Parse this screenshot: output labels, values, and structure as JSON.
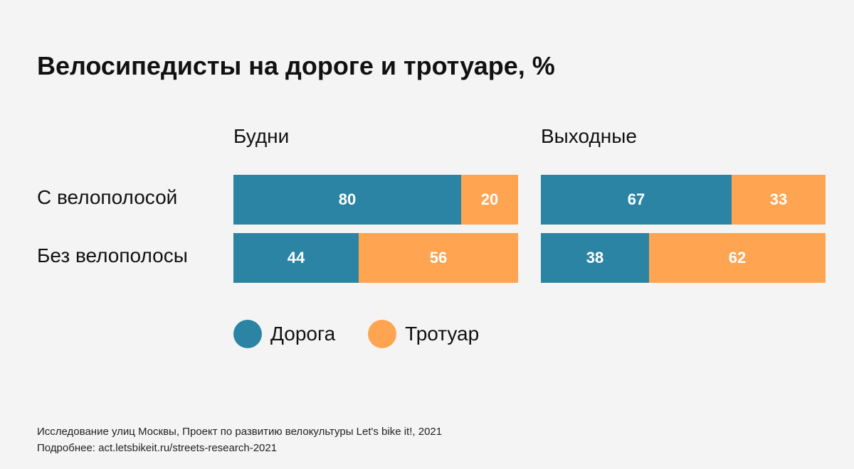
{
  "chart_data": {
    "type": "bar",
    "stacked": true,
    "orientation": "horizontal",
    "title": "Велосипедисты на дороге и тротуаре, %",
    "panels": [
      {
        "title": "Будни",
        "categories": [
          "С велополосой",
          "Без велополосы"
        ],
        "series": [
          {
            "name": "Дорога",
            "values": [
              80,
              44
            ]
          },
          {
            "name": "Тротуар",
            "values": [
              20,
              56
            ]
          }
        ]
      },
      {
        "title": "Выходные",
        "categories": [
          "С велополосой",
          "Без велополосы"
        ],
        "series": [
          {
            "name": "Дорога",
            "values": [
              67,
              38
            ]
          },
          {
            "name": "Тротуар",
            "values": [
              33,
              62
            ]
          }
        ]
      }
    ],
    "legend": [
      {
        "name": "Дорога",
        "color": "#2b84a3"
      },
      {
        "name": "Тротуар",
        "color": "#ffa450"
      }
    ],
    "row_labels": [
      "С велополосой",
      "Без велополосы"
    ],
    "xlim": [
      0,
      100
    ]
  },
  "footer": {
    "source": "Исследование улиц Москвы, Проект по развитию велокультуры Let's bike it!, 2021",
    "more": "Подробнее: act.letsbikeit.ru/streets-research-2021"
  }
}
